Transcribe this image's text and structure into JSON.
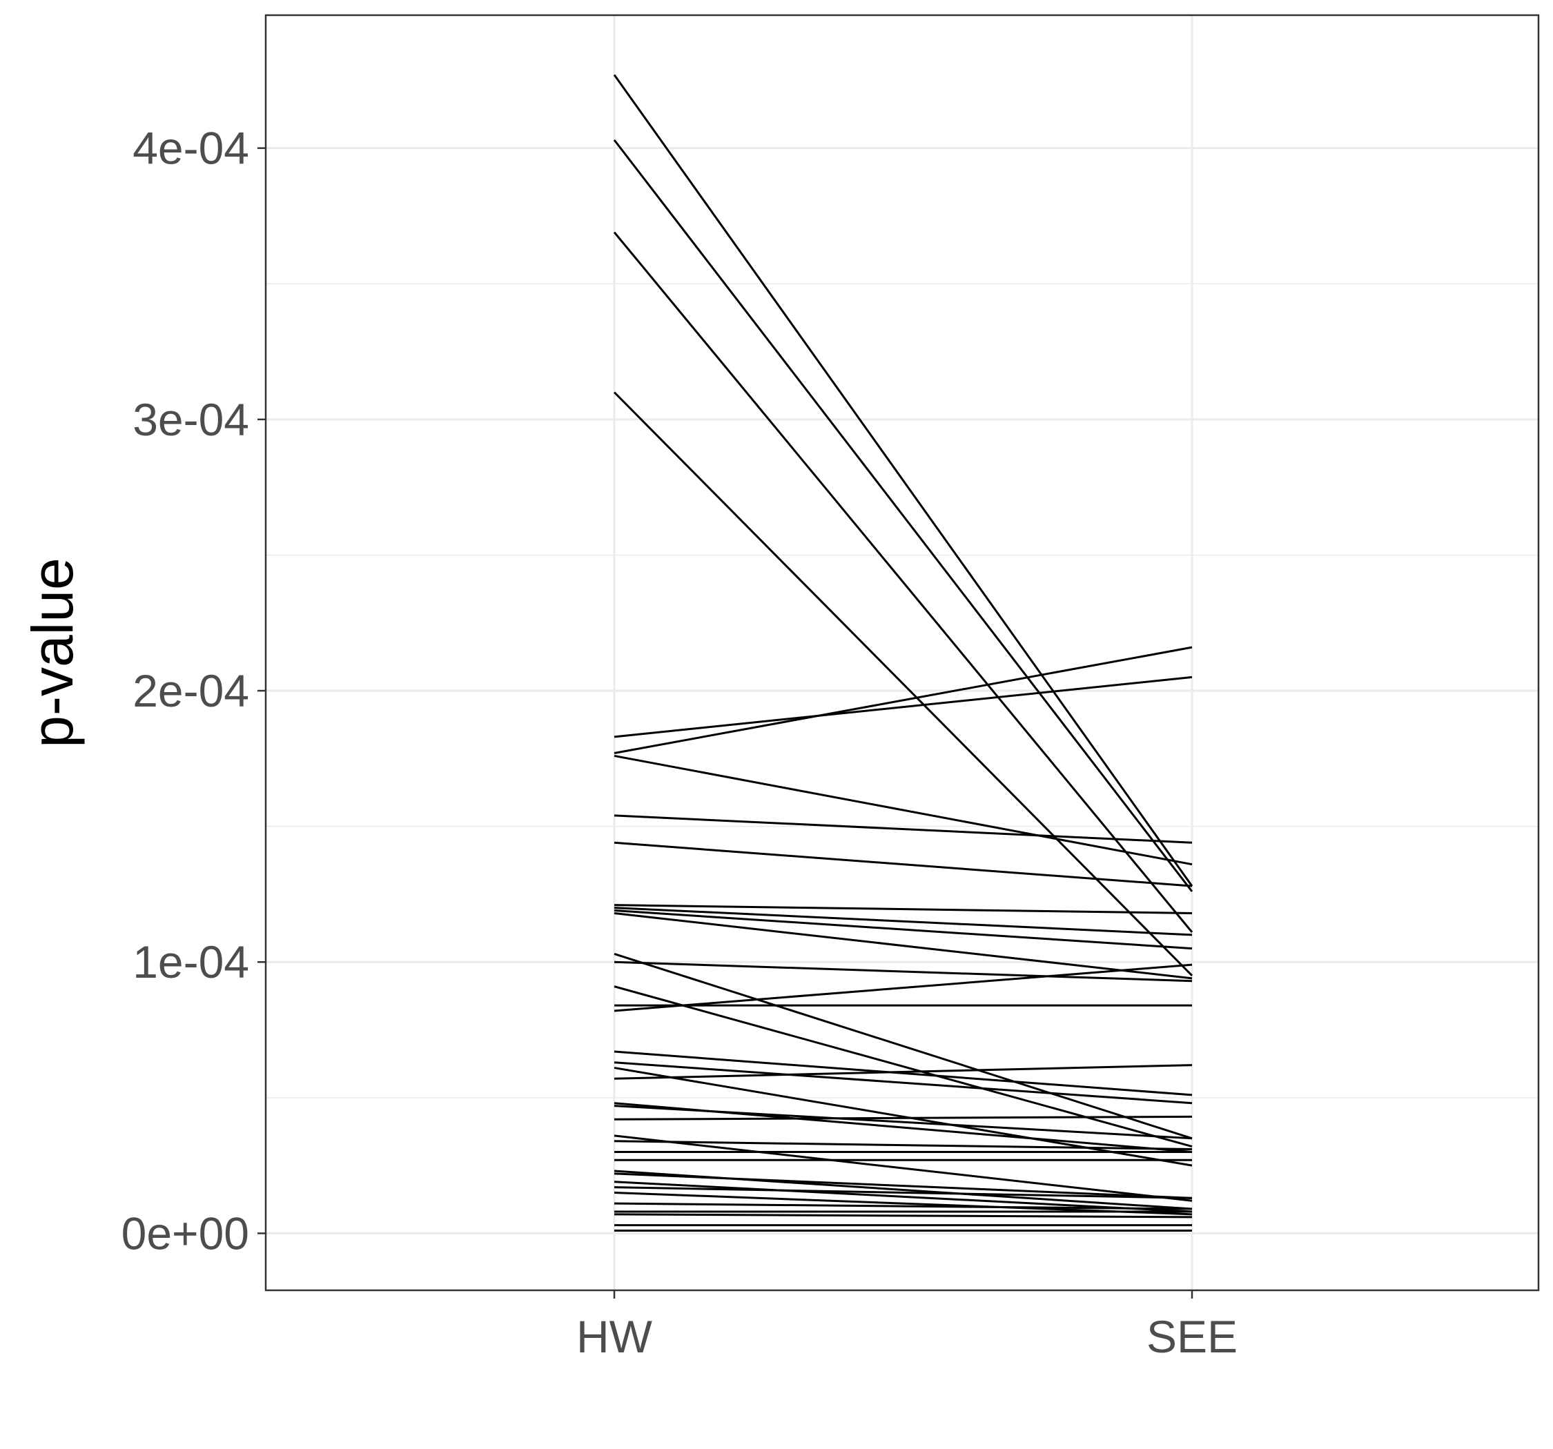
{
  "chart_data": {
    "type": "line",
    "title": "",
    "xlabel": "",
    "ylabel": "p-value",
    "categories": [
      "HW",
      "SEE"
    ],
    "ylim": [
      -2.1e-05,
      0.000449
    ],
    "y_ticks": [
      {
        "value": 0,
        "label": "0e+00"
      },
      {
        "value": 0.0001,
        "label": "1e-04"
      },
      {
        "value": 0.0002,
        "label": "2e-04"
      },
      {
        "value": 0.0003,
        "label": "3e-04"
      },
      {
        "value": 0.0004,
        "label": "4e-04"
      }
    ],
    "y_minor_ticks": [
      5e-05,
      0.00015,
      0.00025,
      0.00035
    ],
    "grid": true,
    "legend": "none",
    "line_color": "#000000",
    "grid_color": "#ebebeb",
    "panel_border_color": "#333333",
    "series": [
      {
        "values": [
          0.000427,
          0.000128
        ]
      },
      {
        "values": [
          0.000403,
          0.000126
        ]
      },
      {
        "values": [
          0.000369,
          0.000111
        ]
      },
      {
        "values": [
          0.00031,
          9.5e-05
        ]
      },
      {
        "values": [
          0.000183,
          0.000205
        ]
      },
      {
        "values": [
          0.000177,
          0.000216
        ]
      },
      {
        "values": [
          0.000176,
          0.000136
        ]
      },
      {
        "values": [
          0.000154,
          0.000144
        ]
      },
      {
        "values": [
          0.000144,
          0.000128
        ]
      },
      {
        "values": [
          0.000121,
          0.000118
        ]
      },
      {
        "values": [
          0.00012,
          0.00011
        ]
      },
      {
        "values": [
          0.000119,
          0.000105
        ]
      },
      {
        "values": [
          0.000118,
          9.4e-05
        ]
      },
      {
        "values": [
          0.000103,
          3.5e-05
        ]
      },
      {
        "values": [
          0.0001,
          9.3e-05
        ]
      },
      {
        "values": [
          9.1e-05,
          3.2e-05
        ]
      },
      {
        "values": [
          8.4e-05,
          8.4e-05
        ]
      },
      {
        "values": [
          8.2e-05,
          9.9e-05
        ]
      },
      {
        "values": [
          6.7e-05,
          5.1e-05
        ]
      },
      {
        "values": [
          6.3e-05,
          4.8e-05
        ]
      },
      {
        "values": [
          6.1e-05,
          2.5e-05
        ]
      },
      {
        "values": [
          5.7e-05,
          6.2e-05
        ]
      },
      {
        "values": [
          4.8e-05,
          3e-05
        ]
      },
      {
        "values": [
          4.7e-05,
          3.5e-05
        ]
      },
      {
        "values": [
          4.2e-05,
          4.3e-05
        ]
      },
      {
        "values": [
          3.6e-05,
          1.2e-05
        ]
      },
      {
        "values": [
          3.4e-05,
          3.1e-05
        ]
      },
      {
        "values": [
          3e-05,
          3e-05
        ]
      },
      {
        "values": [
          2.7e-05,
          2.7e-05
        ]
      },
      {
        "values": [
          2.3e-05,
          9e-06
        ]
      },
      {
        "values": [
          2.2e-05,
          1.3e-05
        ]
      },
      {
        "values": [
          1.9e-05,
          8e-06
        ]
      },
      {
        "values": [
          1.7e-05,
          1.3e-05
        ]
      },
      {
        "values": [
          1.5e-05,
          7e-06
        ]
      },
      {
        "values": [
          1.1e-05,
          9e-06
        ]
      },
      {
        "values": [
          8e-06,
          8e-06
        ]
      },
      {
        "values": [
          7e-06,
          6e-06
        ]
      },
      {
        "values": [
          3e-06,
          3e-06
        ]
      },
      {
        "values": [
          1e-06,
          1e-06
        ]
      }
    ]
  }
}
